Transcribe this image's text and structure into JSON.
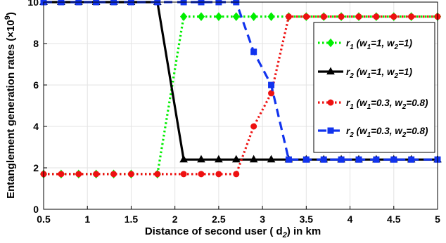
{
  "chart_data": {
    "type": "line",
    "title": "",
    "xlabel": "Distance of second user ( d",
    "xlabel_sub": "2",
    "xlabel_tail": ")  in km",
    "ylabel": "Entanglement generation rates (×10",
    "ylabel_sup": "9",
    "ylabel_tail": ")",
    "xlim": [
      0.5,
      5
    ],
    "ylim": [
      0,
      10
    ],
    "xticks": [
      0.5,
      1,
      1.5,
      2,
      2.5,
      3,
      3.5,
      4,
      4.5,
      5
    ],
    "xtick_labels": [
      "0.5",
      "1",
      "1.5",
      "2",
      "2.5",
      "3",
      "3.5",
      "4",
      "4.5",
      "5"
    ],
    "yticks": [
      0,
      2,
      4,
      6,
      8,
      10
    ],
    "ytick_labels": [
      "0",
      "2",
      "4",
      "6",
      "8",
      "10"
    ],
    "x": [
      0.5,
      0.7,
      0.9,
      1.1,
      1.3,
      1.5,
      1.8,
      2.1,
      2.3,
      2.5,
      2.7,
      2.9,
      3.1,
      3.3,
      3.5,
      3.7,
      3.9,
      4.1,
      4.3,
      4.5,
      4.7,
      5.0
    ],
    "grid": true,
    "legend_position": "right",
    "series": [
      {
        "name": "r1 (w1=1, w2=1)",
        "color": "#00ee00",
        "dash": "dotted",
        "marker": "diamond",
        "values": [
          1.7,
          1.7,
          1.7,
          1.7,
          1.7,
          1.7,
          1.7,
          9.3,
          9.3,
          9.3,
          9.3,
          9.3,
          9.3,
          9.3,
          9.3,
          9.3,
          9.3,
          9.3,
          9.3,
          9.3,
          9.3,
          9.3
        ]
      },
      {
        "name": "r2 (w1=1, w2=1)",
        "color": "#000000",
        "dash": "solid",
        "marker": "triangle",
        "values": [
          10,
          10,
          10,
          10,
          10,
          10,
          10,
          2.4,
          2.4,
          2.4,
          2.4,
          2.4,
          2.4,
          2.4,
          2.4,
          2.4,
          2.4,
          2.4,
          2.4,
          2.4,
          2.4,
          2.4
        ]
      },
      {
        "name": "r1 (w1=0.3, w2=0.8)",
        "color": "#ee1111",
        "dash": "dotted",
        "marker": "circle",
        "values": [
          1.7,
          1.7,
          1.7,
          1.7,
          1.7,
          1.7,
          1.7,
          1.7,
          1.7,
          1.7,
          1.7,
          4.0,
          5.6,
          9.3,
          9.3,
          9.3,
          9.3,
          9.3,
          9.3,
          9.3,
          9.3,
          9.3
        ]
      },
      {
        "name": "r2 (w1=0.3, w2=0.8)",
        "color": "#1133ee",
        "dash": "dashed",
        "marker": "square",
        "values": [
          10,
          10,
          10,
          10,
          10,
          10,
          10,
          10,
          10,
          10,
          10,
          7.6,
          6.0,
          2.4,
          2.4,
          2.4,
          2.4,
          2.4,
          2.4,
          2.4,
          2.4,
          2.4
        ]
      }
    ],
    "legend": [
      {
        "r": "r",
        "sub": "1",
        "open": " (w",
        "w1sub": "1",
        "w1val": "=1, w",
        "w2sub": "2",
        "w2val": "=1)"
      },
      {
        "r": "r",
        "sub": "2",
        "open": " (w",
        "w1sub": "1",
        "w1val": "=1, w",
        "w2sub": "2",
        "w2val": "=1)"
      },
      {
        "r": "r",
        "sub": "1",
        "open": " (w",
        "w1sub": "1",
        "w1val": "=0.3, w",
        "w2sub": "2",
        "w2val": "=0.8)"
      },
      {
        "r": "r",
        "sub": "2",
        "open": " (w",
        "w1sub": "1",
        "w1val": "=0.3, w",
        "w2sub": "2",
        "w2val": "=0.8)"
      }
    ]
  }
}
